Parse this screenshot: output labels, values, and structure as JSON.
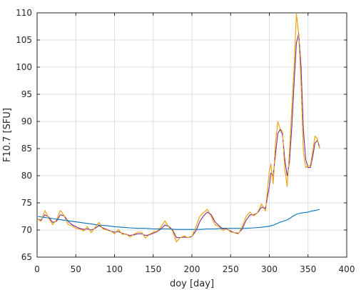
{
  "chart_data": {
    "type": "line",
    "title": "",
    "xlabel": "doy [day]",
    "ylabel": "F10.7 [SFU]",
    "xlim": [
      0,
      400
    ],
    "ylim": [
      65,
      110
    ],
    "xticks": [
      0,
      50,
      100,
      150,
      200,
      250,
      300,
      350,
      400
    ],
    "yticks": [
      65,
      70,
      75,
      80,
      85,
      90,
      95,
      100,
      105,
      110
    ],
    "grid": true,
    "legend": "none",
    "series": [
      {
        "color": "#f28e00",
        "style": "solid",
        "x": [
          1,
          5,
          10,
          15,
          20,
          25,
          30,
          35,
          40,
          45,
          50,
          55,
          60,
          65,
          70,
          75,
          80,
          85,
          90,
          95,
          100,
          105,
          110,
          115,
          120,
          125,
          130,
          135,
          140,
          145,
          150,
          155,
          160,
          165,
          170,
          175,
          180,
          185,
          190,
          195,
          200,
          205,
          210,
          215,
          220,
          225,
          230,
          235,
          240,
          245,
          250,
          255,
          260,
          265,
          270,
          275,
          280,
          285,
          290,
          295,
          300,
          302,
          305,
          308,
          311,
          314,
          317,
          320,
          323,
          326,
          329,
          332,
          335,
          338,
          341,
          344,
          347,
          350,
          353,
          356,
          359,
          362,
          365
        ],
        "y": [
          72,
          71.6,
          73.6,
          72.2,
          71,
          71.8,
          73.6,
          72.6,
          71,
          70.8,
          70.3,
          70.2,
          69.8,
          70.6,
          69.5,
          70.5,
          71.4,
          70.2,
          70,
          69.8,
          69.3,
          70.1,
          69.2,
          69.3,
          68.7,
          69.2,
          69.6,
          69.6,
          68.5,
          69.2,
          69.6,
          69.8,
          70.5,
          71.7,
          70.6,
          69.8,
          67.8,
          68.6,
          68.9,
          68.6,
          68.8,
          70.5,
          72.5,
          73.2,
          73.8,
          72.5,
          71,
          70.6,
          69.9,
          70.4,
          69.6,
          69.5,
          69.3,
          70.6,
          72.5,
          73.3,
          72.6,
          73.2,
          74.8,
          73.5,
          80.8,
          82.2,
          78.5,
          86.2,
          90,
          88.6,
          88.2,
          81.2,
          78,
          84.2,
          92.5,
          100,
          109.8,
          106,
          97,
          84.5,
          81.5,
          81.8,
          81.8,
          84.5,
          87.3,
          86.8,
          85
        ]
      },
      {
        "color": "#7e2f8e",
        "style": "solid",
        "x": [
          1,
          5,
          10,
          15,
          20,
          25,
          30,
          35,
          40,
          45,
          50,
          55,
          60,
          65,
          70,
          75,
          80,
          85,
          90,
          95,
          100,
          105,
          110,
          115,
          120,
          125,
          130,
          135,
          140,
          145,
          150,
          155,
          160,
          165,
          170,
          175,
          180,
          185,
          190,
          195,
          200,
          205,
          210,
          215,
          220,
          225,
          230,
          235,
          240,
          245,
          250,
          255,
          260,
          265,
          270,
          275,
          280,
          285,
          290,
          295,
          300,
          302,
          305,
          308,
          311,
          314,
          317,
          320,
          323,
          326,
          329,
          332,
          335,
          338,
          341,
          344,
          347,
          350,
          353,
          356,
          359,
          362,
          365
        ],
        "y": [
          72,
          71.8,
          72.8,
          72.4,
          71.4,
          71.6,
          72.8,
          72.6,
          71.6,
          71,
          70.6,
          70.3,
          70.1,
          70.2,
          70,
          70.3,
          70.8,
          70.4,
          70.1,
          69.8,
          69.6,
          69.7,
          69.4,
          69.2,
          69,
          69.1,
          69.3,
          69.3,
          69,
          69.1,
          69.4,
          69.7,
          70.2,
          70.9,
          70.7,
          70,
          68.6,
          68.6,
          68.7,
          68.6,
          68.8,
          69.8,
          71.5,
          72.6,
          73.3,
          72.8,
          71.5,
          70.8,
          70.2,
          70.2,
          69.8,
          69.5,
          69.4,
          70.2,
          71.8,
          72.8,
          72.8,
          73.2,
          74.2,
          74,
          78,
          80.5,
          80,
          84,
          87.8,
          88.5,
          87.6,
          83,
          80,
          82.5,
          89,
          97,
          104.5,
          106.2,
          100,
          88.5,
          83,
          81.5,
          81.5,
          83.5,
          86,
          86.5,
          85.2
        ]
      },
      {
        "color": "#0072bd",
        "style": "solid",
        "x": [
          1,
          10,
          20,
          30,
          40,
          50,
          60,
          70,
          80,
          90,
          100,
          110,
          120,
          130,
          140,
          150,
          160,
          170,
          180,
          190,
          200,
          210,
          220,
          230,
          240,
          250,
          260,
          270,
          280,
          290,
          300,
          305,
          310,
          315,
          320,
          325,
          330,
          335,
          340,
          345,
          350,
          355,
          360,
          365
        ],
        "y": [
          72.5,
          72.3,
          72.1,
          71.9,
          71.7,
          71.5,
          71.3,
          71.1,
          70.9,
          70.8,
          70.6,
          70.5,
          70.4,
          70.3,
          70.3,
          70.2,
          70.2,
          70.2,
          70.1,
          70.1,
          70.1,
          70.1,
          70.2,
          70.2,
          70.3,
          70.3,
          70.3,
          70.3,
          70.4,
          70.5,
          70.7,
          70.9,
          71.2,
          71.5,
          71.7,
          72,
          72.5,
          72.9,
          73.1,
          73.2,
          73.3,
          73.5,
          73.6,
          73.8
        ]
      },
      {
        "color": "#edb120",
        "style": "dashed",
        "x": [
          1,
          5,
          10,
          15,
          20,
          25,
          30,
          35,
          40,
          45,
          50,
          55,
          60,
          65,
          70,
          75,
          80,
          85,
          90,
          95,
          100,
          105,
          110,
          115,
          120,
          125,
          130,
          135,
          140,
          145,
          150,
          155,
          160,
          165,
          170,
          175,
          180,
          185,
          190,
          195,
          200,
          205,
          210,
          215,
          220,
          225,
          230,
          235,
          240,
          245,
          250,
          255,
          260,
          265,
          270,
          275,
          280,
          285,
          290,
          295,
          300,
          302,
          305,
          308,
          311,
          314,
          317,
          320,
          323,
          326,
          329,
          332,
          335,
          338,
          341,
          344,
          347,
          350,
          353,
          356,
          359,
          362,
          365
        ],
        "y": [
          72,
          71.6,
          73.6,
          72.2,
          71,
          71.8,
          73.6,
          72.6,
          71,
          70.8,
          70.3,
          70.2,
          69.8,
          70.6,
          69.5,
          70.5,
          71.4,
          70.2,
          70,
          69.8,
          69.3,
          70.1,
          69.2,
          69.3,
          68.7,
          69.2,
          69.6,
          69.6,
          68.5,
          69.2,
          69.6,
          69.8,
          70.5,
          71.7,
          70.6,
          69.8,
          67.8,
          68.6,
          68.9,
          68.6,
          68.8,
          70.5,
          72.5,
          73.2,
          73.8,
          72.5,
          71,
          70.6,
          69.9,
          70.4,
          69.6,
          69.5,
          69.3,
          70.6,
          72.5,
          73.3,
          72.6,
          73.2,
          74.8,
          73.5,
          80.8,
          82.2,
          78.5,
          86.2,
          90,
          88.6,
          88.2,
          81.2,
          78,
          84.2,
          92.5,
          100,
          109.8,
          106,
          97,
          84.5,
          81.5,
          81.8,
          81.8,
          84.5,
          87.3,
          86.8,
          85
        ]
      }
    ]
  }
}
